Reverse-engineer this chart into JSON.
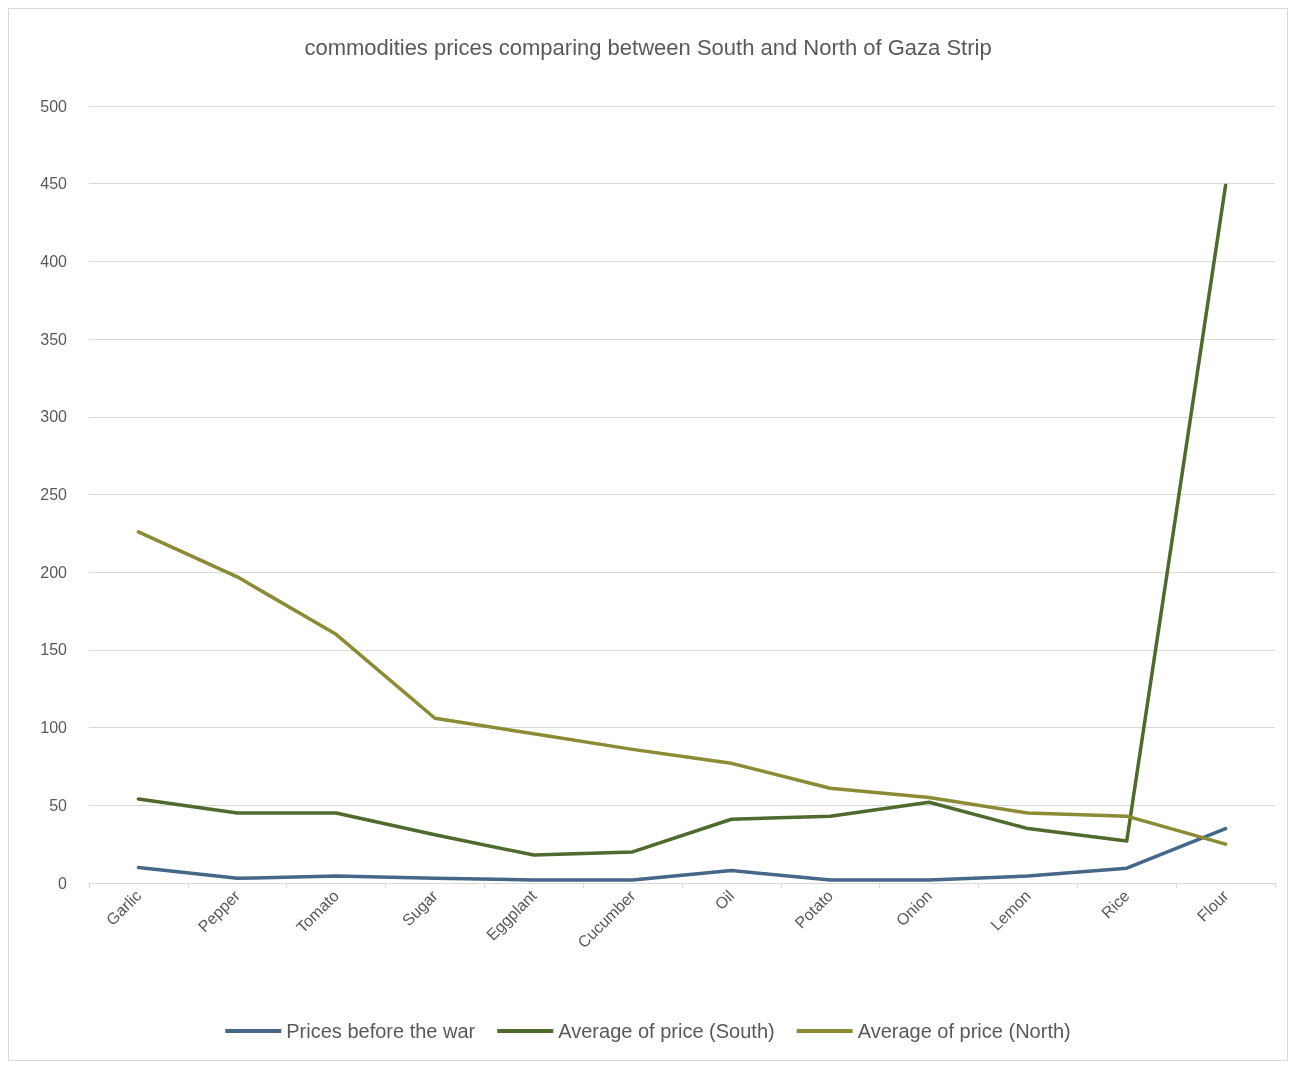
{
  "chart_data": {
    "type": "line",
    "title": "commodities prices comparing between South and North of Gaza Strip",
    "categories": [
      "Garlic",
      "Pepper",
      "Tomato",
      "Sugar",
      "Eggplant",
      "Cucumber",
      "Oil",
      "Potato",
      "Onion",
      "Lemon",
      "Rice",
      "Flour"
    ],
    "series": [
      {
        "name": "Prices before the war",
        "color": "#44678a",
        "values": [
          10,
          3,
          4.5,
          3,
          2,
          2,
          8,
          2,
          2,
          4.5,
          9.5,
          35
        ]
      },
      {
        "name": "Average of price (South)",
        "color": "#4e6a2d",
        "values": [
          54,
          45,
          45,
          31,
          18,
          20,
          41,
          43,
          52,
          35,
          27,
          449
        ]
      },
      {
        "name": "Average of price (North)",
        "color": "#8c8a34",
        "values": [
          226,
          197,
          160,
          106,
          96,
          86,
          77,
          61,
          55,
          45,
          43,
          25
        ]
      }
    ],
    "ylim": [
      0,
      500
    ],
    "yticks": [
      0,
      50,
      100,
      150,
      200,
      250,
      300,
      350,
      400,
      450,
      500
    ],
    "grid": "y",
    "legend": "bottom",
    "marker": "none",
    "line_style": "solid"
  }
}
